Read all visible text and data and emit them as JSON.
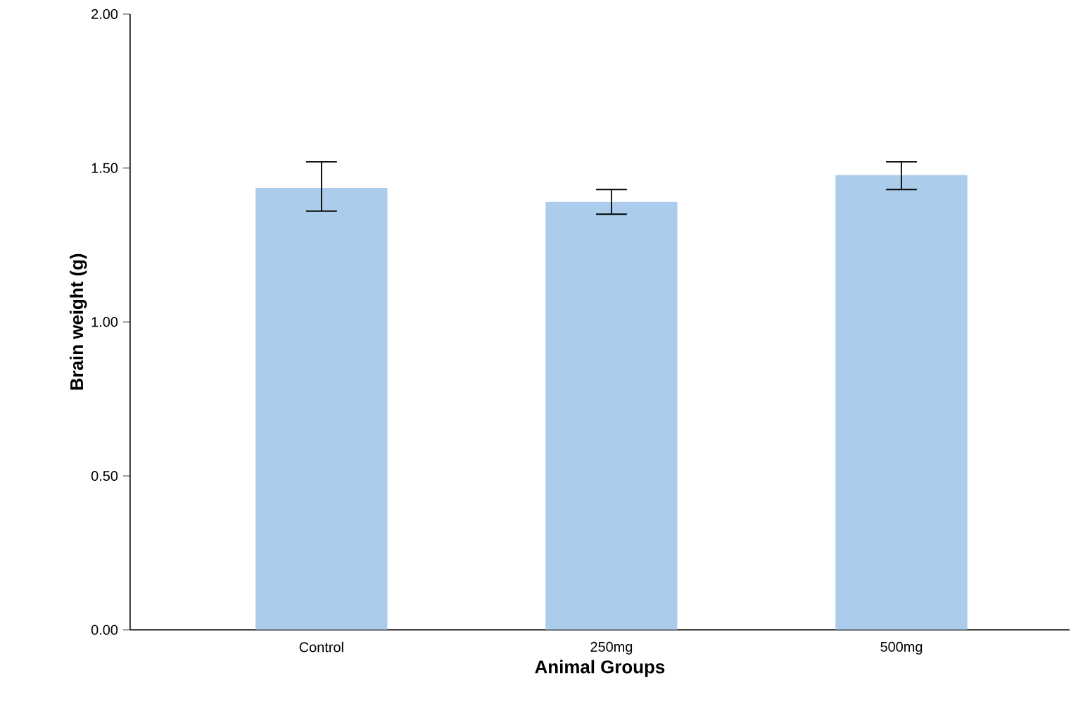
{
  "chart_data": {
    "type": "bar",
    "categories": [
      "Control",
      "250mg",
      "500mg"
    ],
    "values": [
      1.435,
      1.39,
      1.477
    ],
    "errors": [
      [
        1.36,
        1.52
      ],
      [
        1.35,
        1.43
      ],
      [
        1.43,
        1.52
      ]
    ],
    "color": "#abcdeb",
    "xlabel": "Animal Groups",
    "ylabel": "Brain weight (g)",
    "ylim": [
      0,
      2
    ],
    "yticks": [
      {
        "value": 0,
        "label": "0.00"
      },
      {
        "value": 0.5,
        "label": "0.50"
      },
      {
        "value": 1,
        "label": "1.00"
      },
      {
        "value": 1.5,
        "label": "1.50"
      },
      {
        "value": 2,
        "label": "2.00"
      }
    ],
    "grid": false
  }
}
